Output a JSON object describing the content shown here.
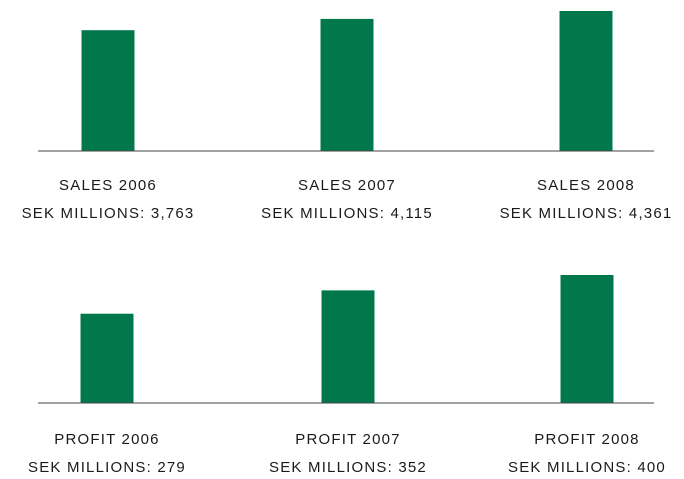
{
  "chart_data": [
    {
      "type": "bar",
      "color": "#00784c",
      "categories": [
        "SALES 2006",
        "SALES 2007",
        "SALES 2008"
      ],
      "values": [
        3763,
        4115,
        4361
      ],
      "value_labels": [
        "SEK MILLIONS: 3,763",
        "SEK MILLIONS: 4,115",
        "SEK MILLIONS: 4,361"
      ]
    },
    {
      "type": "bar",
      "color": "#00784c",
      "categories": [
        "PROFIT 2006",
        "PROFIT 2007",
        "PROFIT 2008"
      ],
      "values": [
        279,
        352,
        400
      ],
      "value_labels": [
        "SEK MILLIONS: 279",
        "SEK MILLIONS: 352",
        "SEK MILLIONS: 400"
      ]
    }
  ]
}
